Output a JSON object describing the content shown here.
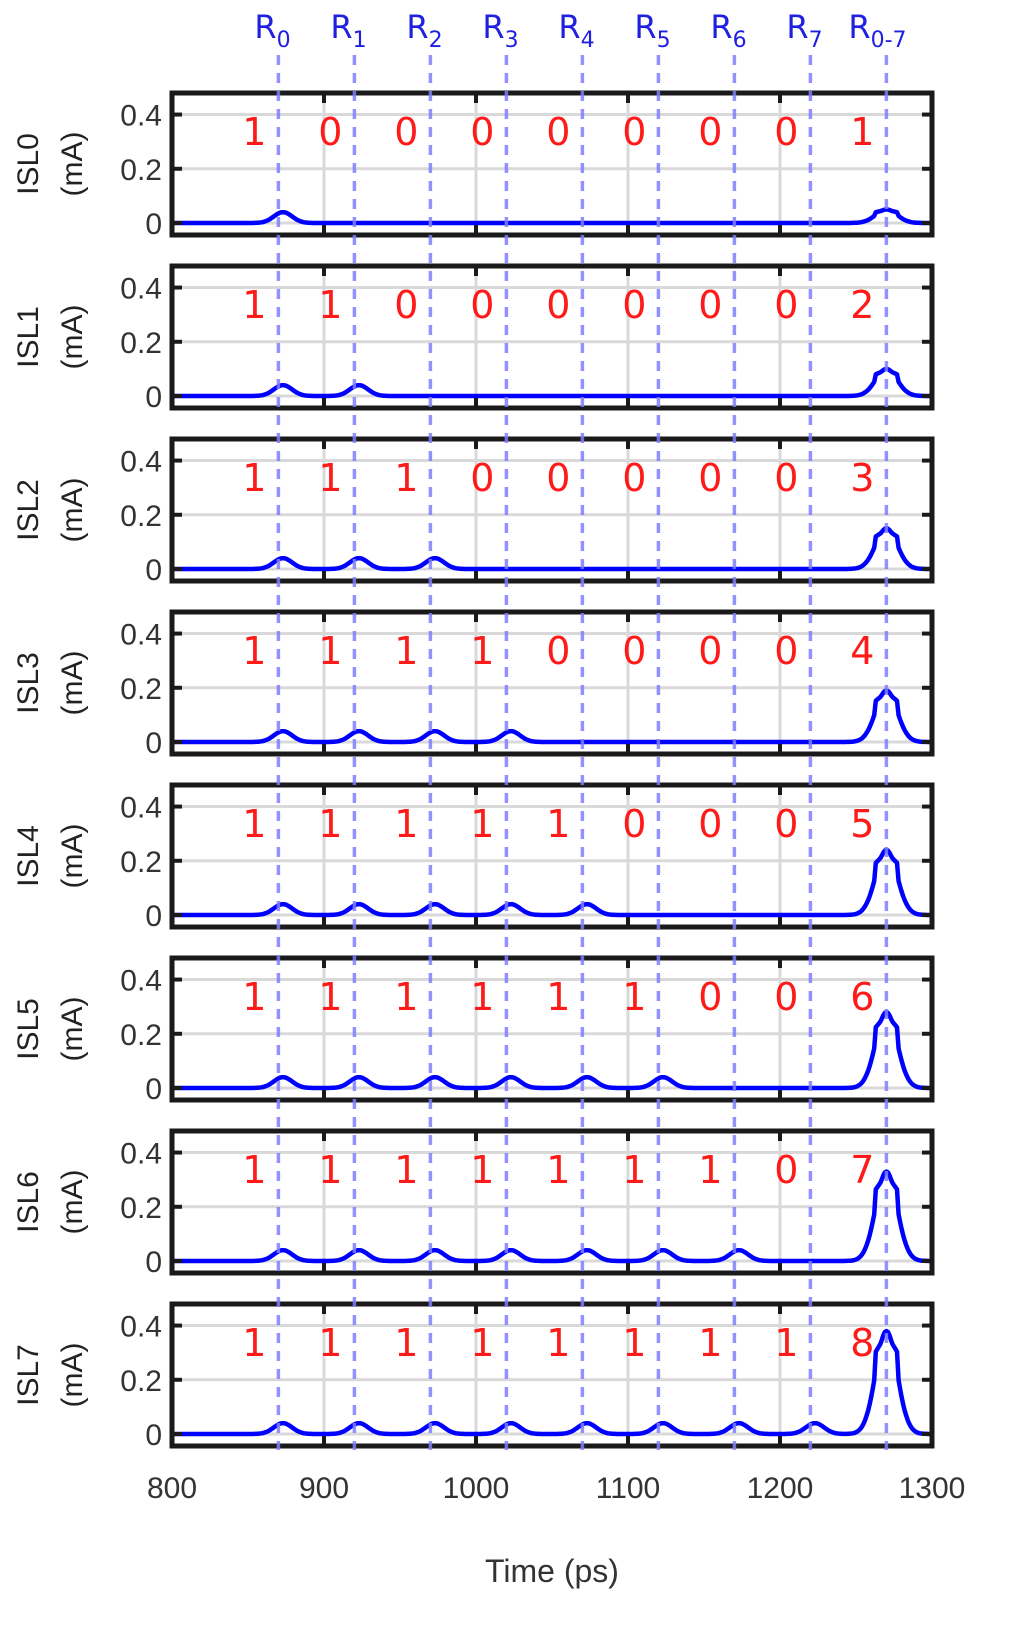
{
  "chart_data": {
    "type": "line",
    "title": "",
    "xlabel": "Time (ps)",
    "xlim": [
      800,
      1300
    ],
    "x_ticks": [
      800,
      900,
      1000,
      1100,
      1200,
      1300
    ],
    "ylim": [
      0,
      0.45
    ],
    "y_ticks": [
      0,
      0.2,
      0.4
    ],
    "y_tick_labels": [
      "0",
      "0.2",
      "0.4"
    ],
    "grid": true,
    "line_color": "#0000ff",
    "marker_color": "#8080ff",
    "bit_color": "#ff0000",
    "read_markers": [
      {
        "label": "R",
        "sub": "0",
        "x": 870
      },
      {
        "label": "R",
        "sub": "1",
        "x": 920
      },
      {
        "label": "R",
        "sub": "2",
        "x": 970
      },
      {
        "label": "R",
        "sub": "3",
        "x": 1020
      },
      {
        "label": "R",
        "sub": "4",
        "x": 1070
      },
      {
        "label": "R",
        "sub": "5",
        "x": 1120
      },
      {
        "label": "R",
        "sub": "6",
        "x": 1170
      },
      {
        "label": "R",
        "sub": "7",
        "x": 1220
      },
      {
        "label": "R",
        "sub": "0-7",
        "x": 1270
      }
    ],
    "panels": [
      {
        "name": "ISL0",
        "unit": "(mA)",
        "bits": [
          "1",
          "0",
          "0",
          "0",
          "0",
          "0",
          "0",
          "0",
          "1"
        ],
        "peaks": [
          0.04,
          0,
          0,
          0,
          0,
          0,
          0,
          0
        ],
        "final_peak": 0.05
      },
      {
        "name": "ISL1",
        "unit": "(mA)",
        "bits": [
          "1",
          "1",
          "0",
          "0",
          "0",
          "0",
          "0",
          "0",
          "2"
        ],
        "peaks": [
          0.04,
          0.04,
          0,
          0,
          0,
          0,
          0,
          0
        ],
        "final_peak": 0.1
      },
      {
        "name": "ISL2",
        "unit": "(mA)",
        "bits": [
          "1",
          "1",
          "1",
          "0",
          "0",
          "0",
          "0",
          "0",
          "3"
        ],
        "peaks": [
          0.04,
          0.04,
          0.04,
          0,
          0,
          0,
          0,
          0
        ],
        "final_peak": 0.15
      },
      {
        "name": "ISL3",
        "unit": "(mA)",
        "bits": [
          "1",
          "1",
          "1",
          "1",
          "0",
          "0",
          "0",
          "0",
          "4"
        ],
        "peaks": [
          0.04,
          0.04,
          0.04,
          0.04,
          0,
          0,
          0,
          0
        ],
        "final_peak": 0.19
      },
      {
        "name": "ISL4",
        "unit": "(mA)",
        "bits": [
          "1",
          "1",
          "1",
          "1",
          "1",
          "0",
          "0",
          "0",
          "5"
        ],
        "peaks": [
          0.04,
          0.04,
          0.04,
          0.04,
          0.04,
          0,
          0,
          0
        ],
        "final_peak": 0.24
      },
      {
        "name": "ISL5",
        "unit": "(mA)",
        "bits": [
          "1",
          "1",
          "1",
          "1",
          "1",
          "1",
          "0",
          "0",
          "6"
        ],
        "peaks": [
          0.04,
          0.04,
          0.04,
          0.04,
          0.04,
          0.04,
          0,
          0
        ],
        "final_peak": 0.28
      },
      {
        "name": "ISL6",
        "unit": "(mA)",
        "bits": [
          "1",
          "1",
          "1",
          "1",
          "1",
          "1",
          "1",
          "0",
          "7"
        ],
        "peaks": [
          0.04,
          0.04,
          0.04,
          0.04,
          0.04,
          0.04,
          0.04,
          0
        ],
        "final_peak": 0.33
      },
      {
        "name": "ISL7",
        "unit": "(mA)",
        "bits": [
          "1",
          "1",
          "1",
          "1",
          "1",
          "1",
          "1",
          "1",
          "8"
        ],
        "peaks": [
          0.04,
          0.04,
          0.04,
          0.04,
          0.04,
          0.04,
          0.04,
          0.04
        ],
        "final_peak": 0.38
      }
    ]
  }
}
